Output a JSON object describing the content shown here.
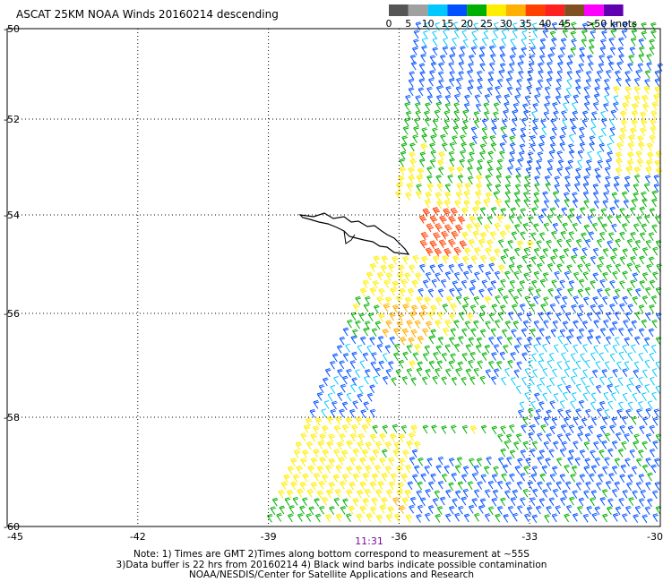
{
  "title": "ASCAT 25KM NOAA Winds 20160214 descending",
  "legend": {
    "ticks": [
      "0",
      "5",
      "10",
      "15",
      "20",
      "25",
      "30",
      "35",
      "40",
      "45",
      ">50 knots"
    ],
    "colors": [
      "#555555",
      "#a0a0a0",
      "#00c8ff",
      "#0050ff",
      "#00b000",
      "#ffee00",
      "#ffb000",
      "#ff4000",
      "#ff2020",
      "#805020",
      "#ff00ff",
      "#6000b0"
    ]
  },
  "map": {
    "lat_labels": [
      "-50",
      "-52",
      "-54",
      "-56",
      "-58",
      "-60"
    ],
    "lon_labels": [
      "-45",
      "-42",
      "-39",
      "-36",
      "-33",
      "-30"
    ],
    "lat_range": [
      -60,
      -50
    ],
    "lon_range": [
      -45,
      -30
    ],
    "grid": "dotted",
    "time_label": "11:31",
    "land": "South Georgia"
  },
  "notes": {
    "line1": "Note: 1) Times are GMT 2)Times along bottom correspond to measurement at ~55S",
    "line2": "3)Data buffer is 22 hrs from 20160214 4) Black wind barbs indicate possible contamination",
    "line3": "NOAA/NESDIS/Center for Satellite Applications and Research"
  }
}
